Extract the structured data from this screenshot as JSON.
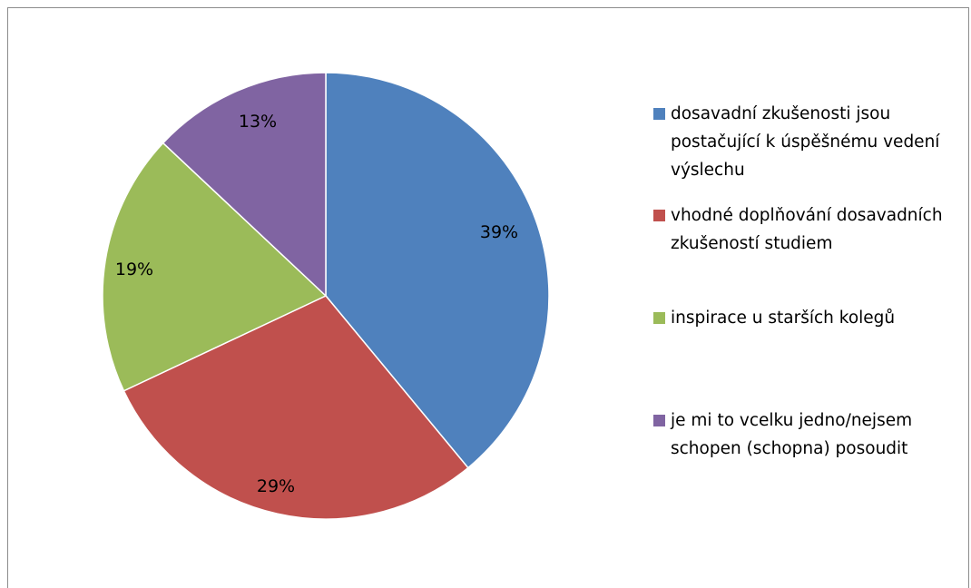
{
  "chart_data": {
    "type": "pie",
    "title": "",
    "slices": [
      {
        "label": "dosavadní zkušenosti jsou postačující k úspěšnému vedení výslechu",
        "value": 39,
        "data_label": "39%",
        "color": "#4F81BD"
      },
      {
        "label": "vhodné doplňování dosavadních zkušeností studiem",
        "value": 29,
        "data_label": "29%",
        "color": "#C0504D"
      },
      {
        "label": "inspirace u starších kolegů",
        "value": 19,
        "data_label": "19%",
        "color": "#9BBB59"
      },
      {
        "label": "je mi to vcelku jedno/nejsem schopen (schopna) posoudit",
        "value": 13,
        "data_label": "13%",
        "color": "#8064A2"
      }
    ],
    "start_angle": "top",
    "direction": "clockwise",
    "legend_position": "right"
  }
}
